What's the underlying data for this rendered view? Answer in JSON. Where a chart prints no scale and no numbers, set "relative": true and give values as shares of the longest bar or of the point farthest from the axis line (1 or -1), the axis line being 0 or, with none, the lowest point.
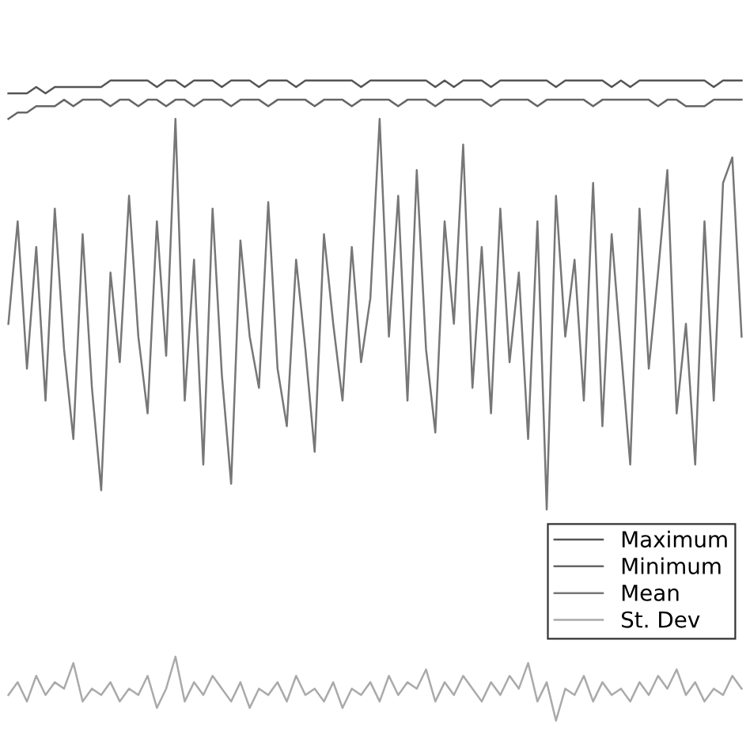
{
  "chart_data": {
    "type": "line",
    "relative": true,
    "legend": "bottom right",
    "marker": "none",
    "line_style": "solid",
    "categories": [
      null,
      null,
      null,
      null,
      null,
      null,
      null,
      null,
      null,
      null,
      null,
      null,
      null,
      null,
      null,
      null,
      null,
      null,
      null,
      null,
      null,
      null,
      null,
      null,
      null,
      null,
      null,
      null,
      null,
      null,
      null,
      null,
      null,
      null,
      null,
      null,
      null,
      null,
      null,
      null,
      null,
      null,
      null,
      null,
      null,
      null,
      null,
      null,
      null,
      null,
      null,
      null,
      null,
      null,
      null,
      null,
      null,
      null,
      null,
      null,
      null,
      null,
      null,
      null,
      null,
      null,
      null,
      null,
      null,
      null,
      null,
      null,
      null,
      null,
      null,
      null,
      null,
      null,
      null,
      null
    ],
    "series": [
      {
        "name": "Maximum",
        "color": "#555555",
        "values": [
          0.98,
          0.98,
          0.98,
          0.99,
          0.98,
          0.99,
          0.99,
          0.99,
          0.99,
          0.99,
          0.99,
          1.0,
          1.0,
          1.0,
          1.0,
          1.0,
          0.99,
          1.0,
          1.0,
          0.99,
          1.0,
          1.0,
          1.0,
          0.99,
          1.0,
          1.0,
          1.0,
          0.99,
          1.0,
          1.0,
          1.0,
          0.99,
          1.0,
          1.0,
          1.0,
          1.0,
          1.0,
          1.0,
          0.99,
          1.0,
          1.0,
          1.0,
          1.0,
          1.0,
          1.0,
          1.0,
          0.99,
          1.0,
          0.99,
          1.0,
          1.0,
          1.0,
          0.99,
          1.0,
          1.0,
          1.0,
          1.0,
          1.0,
          1.0,
          0.99,
          1.0,
          1.0,
          1.0,
          1.0,
          1.0,
          0.99,
          1.0,
          0.99,
          1.0,
          1.0,
          1.0,
          1.0,
          1.0,
          1.0,
          1.0,
          1.0,
          0.99,
          1.0,
          1.0,
          1.0
        ]
      },
      {
        "name": "Minimum",
        "color": "#666666",
        "values": [
          0.94,
          0.95,
          0.95,
          0.96,
          0.96,
          0.96,
          0.97,
          0.96,
          0.97,
          0.97,
          0.97,
          0.96,
          0.97,
          0.97,
          0.96,
          0.97,
          0.97,
          0.96,
          0.97,
          0.97,
          0.96,
          0.97,
          0.97,
          0.97,
          0.96,
          0.97,
          0.97,
          0.97,
          0.96,
          0.97,
          0.97,
          0.97,
          0.97,
          0.96,
          0.97,
          0.97,
          0.97,
          0.96,
          0.97,
          0.97,
          0.97,
          0.97,
          0.96,
          0.97,
          0.97,
          0.97,
          0.96,
          0.97,
          0.97,
          0.97,
          0.97,
          0.97,
          0.96,
          0.97,
          0.97,
          0.97,
          0.97,
          0.96,
          0.97,
          0.97,
          0.97,
          0.97,
          0.97,
          0.96,
          0.97,
          0.97,
          0.97,
          0.97,
          0.97,
          0.97,
          0.96,
          0.97,
          0.97,
          0.96,
          0.96,
          0.96,
          0.97,
          0.97,
          0.97,
          0.97
        ]
      },
      {
        "name": "Mean",
        "color": "#777777",
        "values": [
          0.62,
          0.78,
          0.55,
          0.74,
          0.5,
          0.8,
          0.58,
          0.44,
          0.76,
          0.52,
          0.36,
          0.7,
          0.56,
          0.82,
          0.6,
          0.48,
          0.78,
          0.57,
          0.94,
          0.5,
          0.72,
          0.4,
          0.8,
          0.54,
          0.37,
          0.75,
          0.6,
          0.52,
          0.81,
          0.55,
          0.46,
          0.72,
          0.58,
          0.42,
          0.76,
          0.62,
          0.5,
          0.74,
          0.56,
          0.66,
          0.94,
          0.6,
          0.82,
          0.5,
          0.86,
          0.58,
          0.45,
          0.78,
          0.62,
          0.9,
          0.52,
          0.74,
          0.48,
          0.8,
          0.56,
          0.7,
          0.44,
          0.78,
          0.33,
          0.82,
          0.6,
          0.72,
          0.5,
          0.84,
          0.46,
          0.76,
          0.58,
          0.4,
          0.8,
          0.55,
          0.7,
          0.86,
          0.48,
          0.62,
          0.4,
          0.78,
          0.5,
          0.84,
          0.88,
          0.6
        ]
      },
      {
        "name": "St. Dev",
        "color": "#aaaaaa",
        "values": [
          0.04,
          0.06,
          0.03,
          0.07,
          0.04,
          0.06,
          0.05,
          0.09,
          0.03,
          0.05,
          0.04,
          0.06,
          0.03,
          0.05,
          0.04,
          0.07,
          0.02,
          0.05,
          0.1,
          0.03,
          0.06,
          0.04,
          0.07,
          0.05,
          0.03,
          0.06,
          0.02,
          0.05,
          0.04,
          0.06,
          0.03,
          0.07,
          0.04,
          0.05,
          0.03,
          0.06,
          0.02,
          0.05,
          0.04,
          0.06,
          0.03,
          0.07,
          0.04,
          0.06,
          0.05,
          0.08,
          0.03,
          0.06,
          0.04,
          0.07,
          0.05,
          0.03,
          0.06,
          0.04,
          0.07,
          0.05,
          0.09,
          0.03,
          0.06,
          0.0,
          0.05,
          0.04,
          0.07,
          0.03,
          0.06,
          0.04,
          0.05,
          0.03,
          0.06,
          0.04,
          0.07,
          0.05,
          0.08,
          0.04,
          0.06,
          0.03,
          0.05,
          0.04,
          0.07,
          0.05
        ]
      }
    ]
  }
}
